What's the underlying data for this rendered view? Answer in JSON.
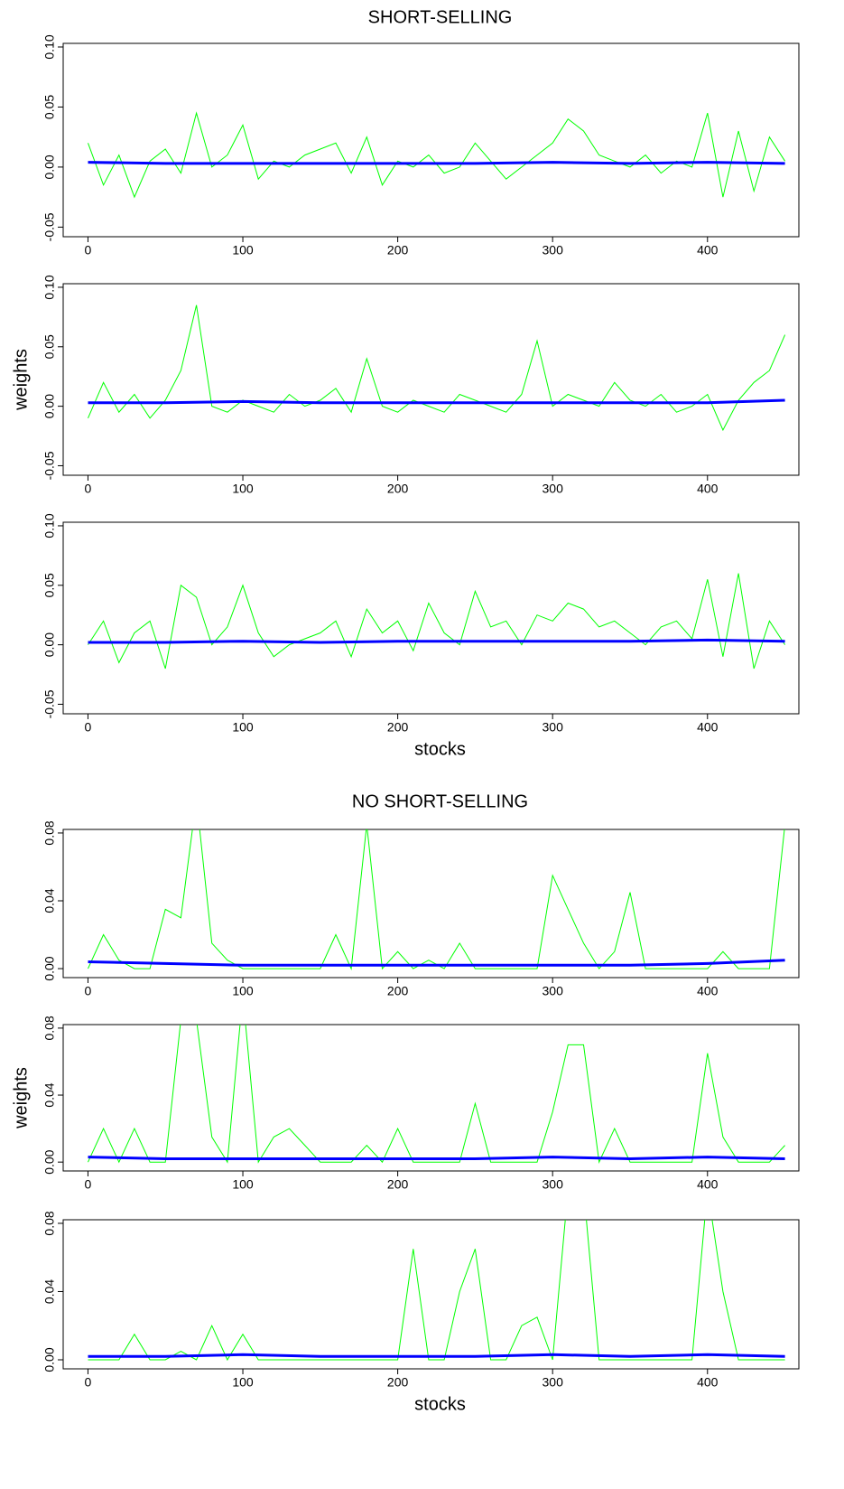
{
  "chart_data": [
    {
      "type": "line",
      "title": "SHORT-SELLING",
      "xlim": [
        -16,
        459
      ],
      "xticks": [
        0,
        100,
        200,
        300,
        400
      ],
      "ylim": [
        -0.058,
        0.103
      ],
      "yticks": [
        {
          "value": -0.05,
          "label": "-0.05"
        },
        {
          "value": 0,
          "label": "0.00"
        },
        {
          "value": 0.05,
          "label": "0.05"
        },
        {
          "value": 0.1,
          "label": "0.10"
        }
      ],
      "series": [
        {
          "color": "#00ff00",
          "x": [
            0,
            10,
            20,
            30,
            40,
            50,
            60,
            70,
            80,
            90,
            100,
            110,
            120,
            130,
            140,
            150,
            160,
            170,
            180,
            190,
            200,
            210,
            220,
            230,
            240,
            250,
            260,
            270,
            280,
            290,
            300,
            310,
            320,
            330,
            340,
            350,
            360,
            370,
            380,
            390,
            400,
            410,
            420,
            430,
            440,
            450
          ],
          "values": [
            0.02,
            -0.015,
            0.01,
            -0.025,
            0.005,
            0.015,
            -0.005,
            0.045,
            0.0,
            0.01,
            0.035,
            -0.01,
            0.005,
            0.0,
            0.01,
            0.015,
            0.02,
            -0.005,
            0.025,
            -0.015,
            0.005,
            0.0,
            0.01,
            -0.005,
            0.0,
            0.02,
            0.005,
            -0.01,
            0.0,
            0.01,
            0.02,
            0.04,
            0.03,
            0.01,
            0.005,
            0.0,
            0.01,
            -0.005,
            0.005,
            0.0,
            0.045,
            -0.025,
            0.03,
            -0.02,
            0.025,
            0.005
          ]
        },
        {
          "color": "#0000ff",
          "x": [
            0,
            50,
            100,
            150,
            200,
            250,
            300,
            350,
            400,
            450
          ],
          "values": [
            0.004,
            0.003,
            0.003,
            0.003,
            0.003,
            0.003,
            0.004,
            0.003,
            0.004,
            0.003
          ]
        }
      ]
    },
    {
      "type": "line",
      "y_label": "weights",
      "xlim": [
        -16,
        459
      ],
      "xticks": [
        0,
        100,
        200,
        300,
        400
      ],
      "ylim": [
        -0.058,
        0.103
      ],
      "yticks": [
        {
          "value": -0.05,
          "label": "-0.05"
        },
        {
          "value": 0,
          "label": "0.00"
        },
        {
          "value": 0.05,
          "label": "0.05"
        },
        {
          "value": 0.1,
          "label": "0.10"
        }
      ],
      "series": [
        {
          "color": "#00ff00",
          "x": [
            0,
            10,
            20,
            30,
            40,
            50,
            60,
            70,
            80,
            90,
            100,
            110,
            120,
            130,
            140,
            150,
            160,
            170,
            180,
            190,
            200,
            210,
            220,
            230,
            240,
            250,
            260,
            270,
            280,
            290,
            300,
            310,
            320,
            330,
            340,
            350,
            360,
            370,
            380,
            390,
            400,
            410,
            420,
            430,
            440,
            450
          ],
          "values": [
            -0.01,
            0.02,
            -0.005,
            0.01,
            -0.01,
            0.005,
            0.03,
            0.085,
            0.0,
            -0.005,
            0.005,
            0.0,
            -0.005,
            0.01,
            0.0,
            0.005,
            0.015,
            -0.005,
            0.04,
            0.0,
            -0.005,
            0.005,
            0.0,
            -0.005,
            0.01,
            0.005,
            0.0,
            -0.005,
            0.01,
            0.055,
            0.0,
            0.01,
            0.005,
            0.0,
            0.02,
            0.005,
            0.0,
            0.01,
            -0.005,
            0.0,
            0.01,
            -0.02,
            0.005,
            0.02,
            0.03,
            0.06
          ]
        },
        {
          "color": "#0000ff",
          "x": [
            0,
            50,
            100,
            150,
            200,
            250,
            300,
            350,
            400,
            450
          ],
          "values": [
            0.003,
            0.003,
            0.004,
            0.003,
            0.003,
            0.003,
            0.003,
            0.003,
            0.003,
            0.005
          ]
        }
      ]
    },
    {
      "type": "line",
      "x_label": "stocks",
      "xlim": [
        -16,
        459
      ],
      "xticks": [
        0,
        100,
        200,
        300,
        400
      ],
      "ylim": [
        -0.058,
        0.103
      ],
      "yticks": [
        {
          "value": -0.05,
          "label": "-0.05"
        },
        {
          "value": 0,
          "label": "0.00"
        },
        {
          "value": 0.05,
          "label": "0.05"
        },
        {
          "value": 0.1,
          "label": "0.10"
        }
      ],
      "series": [
        {
          "color": "#00ff00",
          "x": [
            0,
            10,
            20,
            30,
            40,
            50,
            60,
            70,
            80,
            90,
            100,
            110,
            120,
            130,
            140,
            150,
            160,
            170,
            180,
            190,
            200,
            210,
            220,
            230,
            240,
            250,
            260,
            270,
            280,
            290,
            300,
            310,
            320,
            330,
            340,
            350,
            360,
            370,
            380,
            390,
            400,
            410,
            420,
            430,
            440,
            450
          ],
          "values": [
            0.0,
            0.02,
            -0.015,
            0.01,
            0.02,
            -0.02,
            0.05,
            0.04,
            0.0,
            0.015,
            0.05,
            0.01,
            -0.01,
            0.0,
            0.005,
            0.01,
            0.02,
            -0.01,
            0.03,
            0.01,
            0.02,
            -0.005,
            0.035,
            0.01,
            0.0,
            0.045,
            0.015,
            0.02,
            0.0,
            0.025,
            0.02,
            0.035,
            0.03,
            0.015,
            0.02,
            0.01,
            0.0,
            0.015,
            0.02,
            0.005,
            0.055,
            -0.01,
            0.06,
            -0.02,
            0.02,
            0.0
          ]
        },
        {
          "color": "#0000ff",
          "x": [
            0,
            50,
            100,
            150,
            200,
            250,
            300,
            350,
            400,
            450
          ],
          "values": [
            0.002,
            0.002,
            0.003,
            0.002,
            0.003,
            0.003,
            0.003,
            0.003,
            0.004,
            0.003
          ]
        }
      ]
    },
    {
      "type": "line",
      "title": "NO SHORT-SELLING",
      "xlim": [
        -16,
        459
      ],
      "xticks": [
        0,
        100,
        200,
        300,
        400
      ],
      "ylim": [
        -0.0053,
        0.0821
      ],
      "yticks": [
        {
          "value": 0,
          "label": "0.00"
        },
        {
          "value": 0.04,
          "label": "0.04"
        },
        {
          "value": 0.08,
          "label": "0.08"
        }
      ],
      "series": [
        {
          "color": "#00ff00",
          "x": [
            0,
            10,
            20,
            30,
            40,
            50,
            60,
            70,
            80,
            90,
            100,
            110,
            120,
            130,
            140,
            150,
            160,
            170,
            180,
            190,
            200,
            210,
            220,
            230,
            240,
            250,
            260,
            270,
            280,
            290,
            300,
            310,
            320,
            330,
            340,
            350,
            360,
            370,
            380,
            390,
            400,
            410,
            420,
            430,
            440,
            450
          ],
          "values": [
            0.0,
            0.02,
            0.005,
            0.0,
            0.0,
            0.035,
            0.03,
            0.1,
            0.015,
            0.005,
            0.0,
            0.0,
            0.0,
            0.0,
            0.0,
            0.0,
            0.02,
            0.0,
            0.085,
            0.0,
            0.01,
            0.0,
            0.005,
            0.0,
            0.015,
            0.0,
            0.0,
            0.0,
            0.0,
            0.0,
            0.055,
            0.035,
            0.015,
            0.0,
            0.01,
            0.045,
            0.0,
            0.0,
            0.0,
            0.0,
            0.0,
            0.01,
            0.0,
            0.0,
            0.0,
            0.085
          ]
        },
        {
          "color": "#0000ff",
          "x": [
            0,
            50,
            100,
            150,
            200,
            250,
            300,
            350,
            400,
            450
          ],
          "values": [
            0.004,
            0.003,
            0.002,
            0.002,
            0.002,
            0.002,
            0.002,
            0.002,
            0.003,
            0.005
          ]
        }
      ]
    },
    {
      "type": "line",
      "y_label": "weights",
      "xlim": [
        -16,
        459
      ],
      "xticks": [
        0,
        100,
        200,
        300,
        400
      ],
      "ylim": [
        -0.0053,
        0.0821
      ],
      "yticks": [
        {
          "value": 0,
          "label": "0.00"
        },
        {
          "value": 0.04,
          "label": "0.04"
        },
        {
          "value": 0.08,
          "label": "0.08"
        }
      ],
      "series": [
        {
          "color": "#00ff00",
          "x": [
            0,
            10,
            20,
            30,
            40,
            50,
            60,
            70,
            80,
            90,
            100,
            110,
            120,
            130,
            140,
            150,
            160,
            170,
            180,
            190,
            200,
            210,
            220,
            230,
            240,
            250,
            260,
            270,
            280,
            290,
            300,
            310,
            320,
            330,
            340,
            350,
            360,
            370,
            380,
            390,
            400,
            410,
            420,
            430,
            440,
            450
          ],
          "values": [
            0.0,
            0.02,
            0.0,
            0.02,
            0.0,
            0.0,
            0.085,
            0.085,
            0.015,
            0.0,
            0.1,
            0.0,
            0.015,
            0.02,
            0.01,
            0.0,
            0.0,
            0.0,
            0.01,
            0.0,
            0.02,
            0.0,
            0.0,
            0.0,
            0.0,
            0.035,
            0.0,
            0.0,
            0.0,
            0.0,
            0.03,
            0.07,
            0.07,
            0.0,
            0.02,
            0.0,
            0.0,
            0.0,
            0.0,
            0.0,
            0.065,
            0.015,
            0.0,
            0.0,
            0.0,
            0.01
          ]
        },
        {
          "color": "#0000ff",
          "x": [
            0,
            50,
            100,
            150,
            200,
            250,
            300,
            350,
            400,
            450
          ],
          "values": [
            0.003,
            0.002,
            0.002,
            0.002,
            0.002,
            0.002,
            0.003,
            0.002,
            0.003,
            0.002
          ]
        }
      ]
    },
    {
      "type": "line",
      "x_label": "stocks",
      "xlim": [
        -16,
        459
      ],
      "xticks": [
        0,
        100,
        200,
        300,
        400
      ],
      "ylim": [
        -0.0053,
        0.0821
      ],
      "yticks": [
        {
          "value": 0,
          "label": "0.00"
        },
        {
          "value": 0.04,
          "label": "0.04"
        },
        {
          "value": 0.08,
          "label": "0.08"
        }
      ],
      "series": [
        {
          "color": "#00ff00",
          "x": [
            0,
            10,
            20,
            30,
            40,
            50,
            60,
            70,
            80,
            90,
            100,
            110,
            120,
            130,
            140,
            150,
            160,
            170,
            180,
            190,
            200,
            210,
            220,
            230,
            240,
            250,
            260,
            270,
            280,
            290,
            300,
            310,
            320,
            330,
            340,
            350,
            360,
            370,
            380,
            390,
            400,
            410,
            420,
            430,
            440,
            450
          ],
          "values": [
            0.0,
            0.0,
            0.0,
            0.015,
            0.0,
            0.0,
            0.005,
            0.0,
            0.02,
            0.0,
            0.015,
            0.0,
            0.0,
            0.0,
            0.0,
            0.0,
            0.0,
            0.0,
            0.0,
            0.0,
            0.0,
            0.065,
            0.0,
            0.0,
            0.04,
            0.065,
            0.0,
            0.0,
            0.02,
            0.025,
            0.0,
            0.1,
            0.1,
            0.0,
            0.0,
            0.0,
            0.0,
            0.0,
            0.0,
            0.0,
            0.1,
            0.04,
            0.0,
            0.0,
            0.0,
            0.0
          ]
        },
        {
          "color": "#0000ff",
          "x": [
            0,
            50,
            100,
            150,
            200,
            250,
            300,
            350,
            400,
            450
          ],
          "values": [
            0.002,
            0.002,
            0.003,
            0.002,
            0.002,
            0.002,
            0.003,
            0.002,
            0.003,
            0.002
          ]
        }
      ]
    }
  ]
}
